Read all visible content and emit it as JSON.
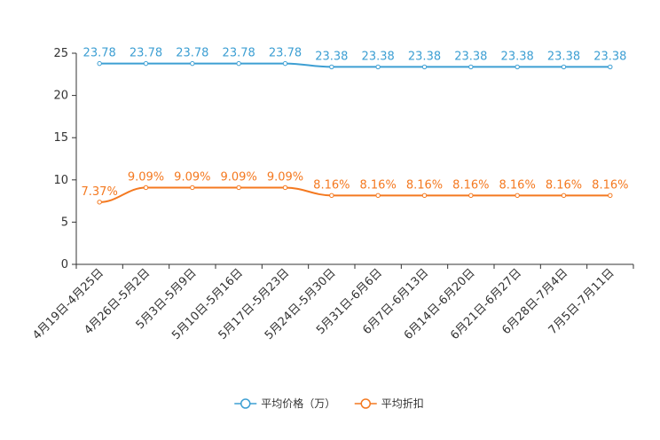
{
  "chart_data": {
    "type": "line",
    "title": "",
    "xlabel": "",
    "ylabel": "",
    "ylim": [
      0,
      25
    ],
    "yticks": [
      0,
      5,
      10,
      15,
      20,
      25
    ],
    "grid": false,
    "legend_position": "bottom-center",
    "categories": [
      "4月19日-4月25日",
      "4月26日-5月2日",
      "5月3日-5月9日",
      "5月10日-5月16日",
      "5月17日-5月23日",
      "5月24日-5月30日",
      "5月31日-6月6日",
      "6月7日-6月13日",
      "6月14日-6月20日",
      "6月21日-6月27日",
      "6月28日-7月4日",
      "7月5日-7月11日"
    ],
    "series": [
      {
        "name": "平均价格（万）",
        "color": "#3d9fd3",
        "values": [
          23.78,
          23.78,
          23.78,
          23.78,
          23.78,
          23.38,
          23.38,
          23.38,
          23.38,
          23.38,
          23.38,
          23.38
        ],
        "labels": [
          "23.78",
          "23.78",
          "23.78",
          "23.78",
          "23.78",
          "23.38",
          "23.38",
          "23.38",
          "23.38",
          "23.38",
          "23.38",
          "23.38"
        ]
      },
      {
        "name": "平均折扣",
        "color": "#f47920",
        "values": [
          7.37,
          9.09,
          9.09,
          9.09,
          9.09,
          8.16,
          8.16,
          8.16,
          8.16,
          8.16,
          8.16,
          8.16
        ],
        "labels": [
          "7.37%",
          "9.09%",
          "9.09%",
          "9.09%",
          "9.09%",
          "8.16%",
          "8.16%",
          "8.16%",
          "8.16%",
          "8.16%",
          "8.16%",
          "8.16%"
        ]
      }
    ]
  }
}
